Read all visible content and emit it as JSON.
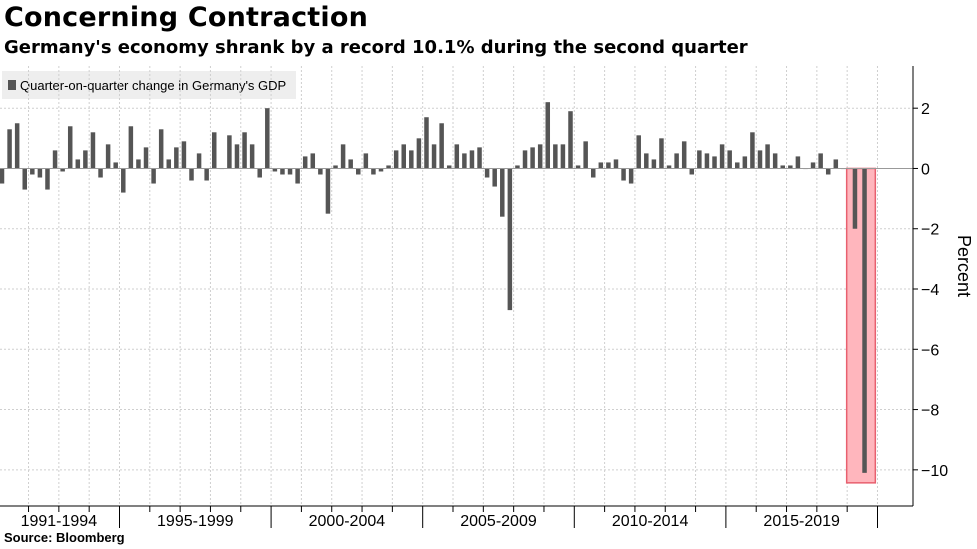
{
  "title": "Concerning Contraction",
  "subtitle": "Germany's economy shrank by a record 10.1% during the second quarter",
  "source": "Source: Bloomberg",
  "chart_data": {
    "type": "bar",
    "legend": "Quarter-on-quarter change in Germany's GDP",
    "legend_position": "top-left",
    "ylabel": "Percent",
    "y_axis_side": "right",
    "ylim": [
      -11.2,
      3.4
    ],
    "yticks": [
      2,
      0,
      -2,
      -4,
      -6,
      -8,
      -10
    ],
    "grid": true,
    "bar_color": "#555555",
    "highlight_color": "#ffb6bd",
    "xticks": [
      "1991-1994",
      "1995-1999",
      "2000-2004",
      "2005-2009",
      "2010-2014",
      "2015-2019"
    ],
    "start_quarter": "1991 Q1",
    "end_quarter": "2020 Q2",
    "values": [
      -0.5,
      1.3,
      1.5,
      -0.7,
      -0.2,
      -0.3,
      -0.7,
      0.6,
      -0.1,
      1.4,
      0.3,
      0.6,
      1.2,
      -0.3,
      0.8,
      0.2,
      -0.8,
      1.4,
      0.3,
      0.7,
      -0.5,
      1.3,
      0.3,
      0.7,
      0.9,
      -0.4,
      0.5,
      -0.4,
      1.2,
      0.0,
      1.1,
      0.8,
      1.2,
      0.8,
      -0.3,
      2.0,
      -0.1,
      -0.2,
      -0.2,
      -0.5,
      0.4,
      0.5,
      -0.2,
      -1.5,
      0.1,
      0.8,
      0.3,
      -0.2,
      0.5,
      -0.2,
      -0.1,
      0.1,
      0.6,
      0.8,
      0.6,
      1.0,
      1.7,
      0.8,
      1.5,
      0.1,
      0.8,
      0.5,
      0.6,
      0.7,
      -0.3,
      -0.6,
      -1.6,
      -4.7,
      0.1,
      0.6,
      0.7,
      0.8,
      2.2,
      0.8,
      0.8,
      1.9,
      0.1,
      0.9,
      -0.3,
      0.2,
      0.2,
      0.3,
      -0.4,
      -0.5,
      1.1,
      0.5,
      0.3,
      1.0,
      0.1,
      0.5,
      0.9,
      -0.2,
      0.6,
      0.5,
      0.4,
      0.8,
      0.6,
      0.2,
      0.4,
      1.2,
      0.6,
      0.8,
      0.5,
      0.1,
      0.1,
      0.4,
      0.0,
      0.2,
      0.5,
      -0.2,
      0.3,
      0.0,
      -2.0,
      -10.1
    ],
    "highlight_last_n": 2
  }
}
